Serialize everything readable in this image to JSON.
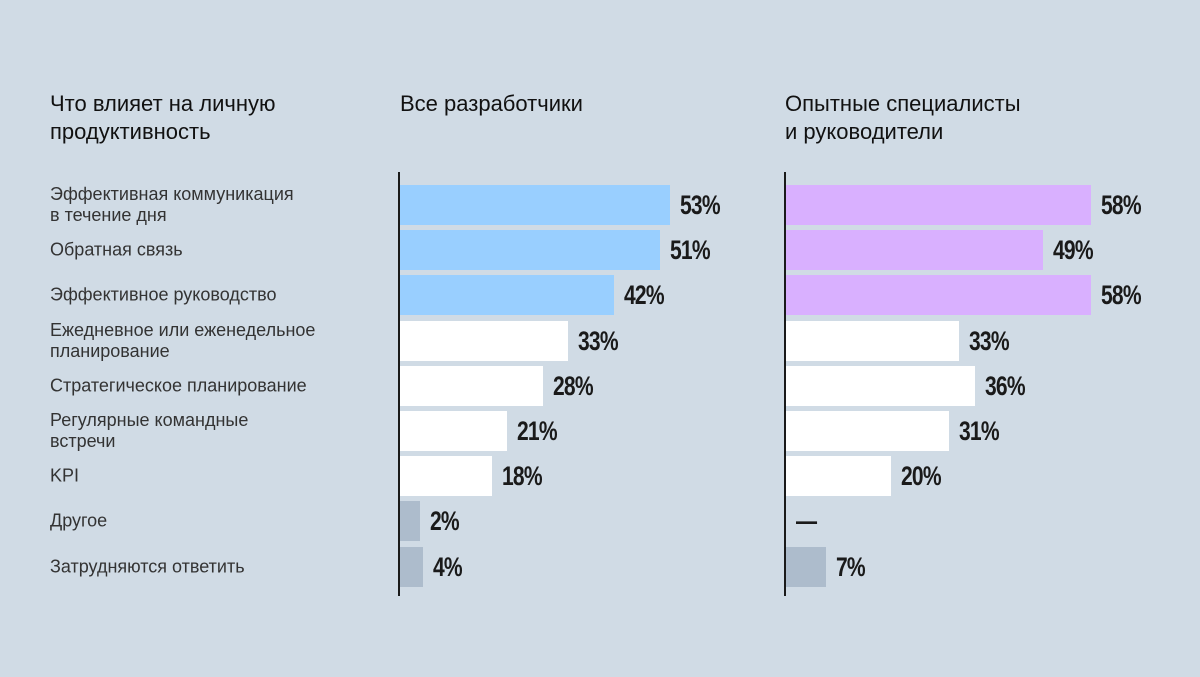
{
  "chart_data": [
    {
      "type": "bar",
      "orientation": "horizontal",
      "title": "Все разработчики",
      "category_header": "Что влияет на личную продуктивность",
      "categories": [
        "Эффективная коммуникация в течение дня",
        "Обратная связь",
        "Эффективное руководство",
        "Ежедневное или еженедельное планирование",
        "Стратегическое планирование",
        "Регулярные командные встречи",
        "KPI",
        "Другое",
        "Затрудняются ответить"
      ],
      "values": [
        53,
        51,
        42,
        33,
        28,
        21,
        18,
        2,
        4
      ],
      "labels": [
        "53%",
        "51%",
        "42%",
        "33%",
        "28%",
        "21%",
        "18%",
        "2%",
        "4%"
      ],
      "bar_colors": [
        "#99cfff",
        "#99cfff",
        "#99cfff",
        "#ffffff",
        "#ffffff",
        "#ffffff",
        "#ffffff",
        "#adbccc",
        "#adbccc"
      ]
    },
    {
      "type": "bar",
      "orientation": "horizontal",
      "title": "Опытные специалисты и руководители",
      "categories": [
        "Эффективная коммуникация в течение дня",
        "Обратная связь",
        "Эффективное руководство",
        "Ежедневное или еженедельное планирование",
        "Стратегическое планирование",
        "Регулярные командные встречи",
        "KPI",
        "Другое",
        "Затрудняются ответить"
      ],
      "values": [
        58,
        49,
        58,
        33,
        36,
        31,
        20,
        null,
        7
      ],
      "labels": [
        "58%",
        "49%",
        "58%",
        "33%",
        "36%",
        "31%",
        "20%",
        "—",
        "7%"
      ],
      "bar_colors": [
        "#d9b0ff",
        "#d9b0ff",
        "#d9b0ff",
        "#ffffff",
        "#ffffff",
        "#ffffff",
        "#ffffff",
        "#adbccc",
        "#adbccc"
      ]
    }
  ],
  "headers": {
    "left_line1": "Что влияет на личную",
    "left_line2": "продуктивность",
    "mid": "Все разработчики",
    "right_line1": "Опытные специалисты",
    "right_line2": "и руководители"
  },
  "category_lines": [
    [
      "Эффективная коммуникация",
      "в течение дня"
    ],
    [
      "Обратная связь"
    ],
    [
      "Эффективное руководство"
    ],
    [
      "Ежедневное или еженедельное",
      "планирование"
    ],
    [
      "Стратегическое планирование"
    ],
    [
      "Регулярные командные",
      "встречи"
    ],
    [
      "KPI"
    ],
    [
      "Другое"
    ],
    [
      "Затрудняются ответить"
    ]
  ]
}
